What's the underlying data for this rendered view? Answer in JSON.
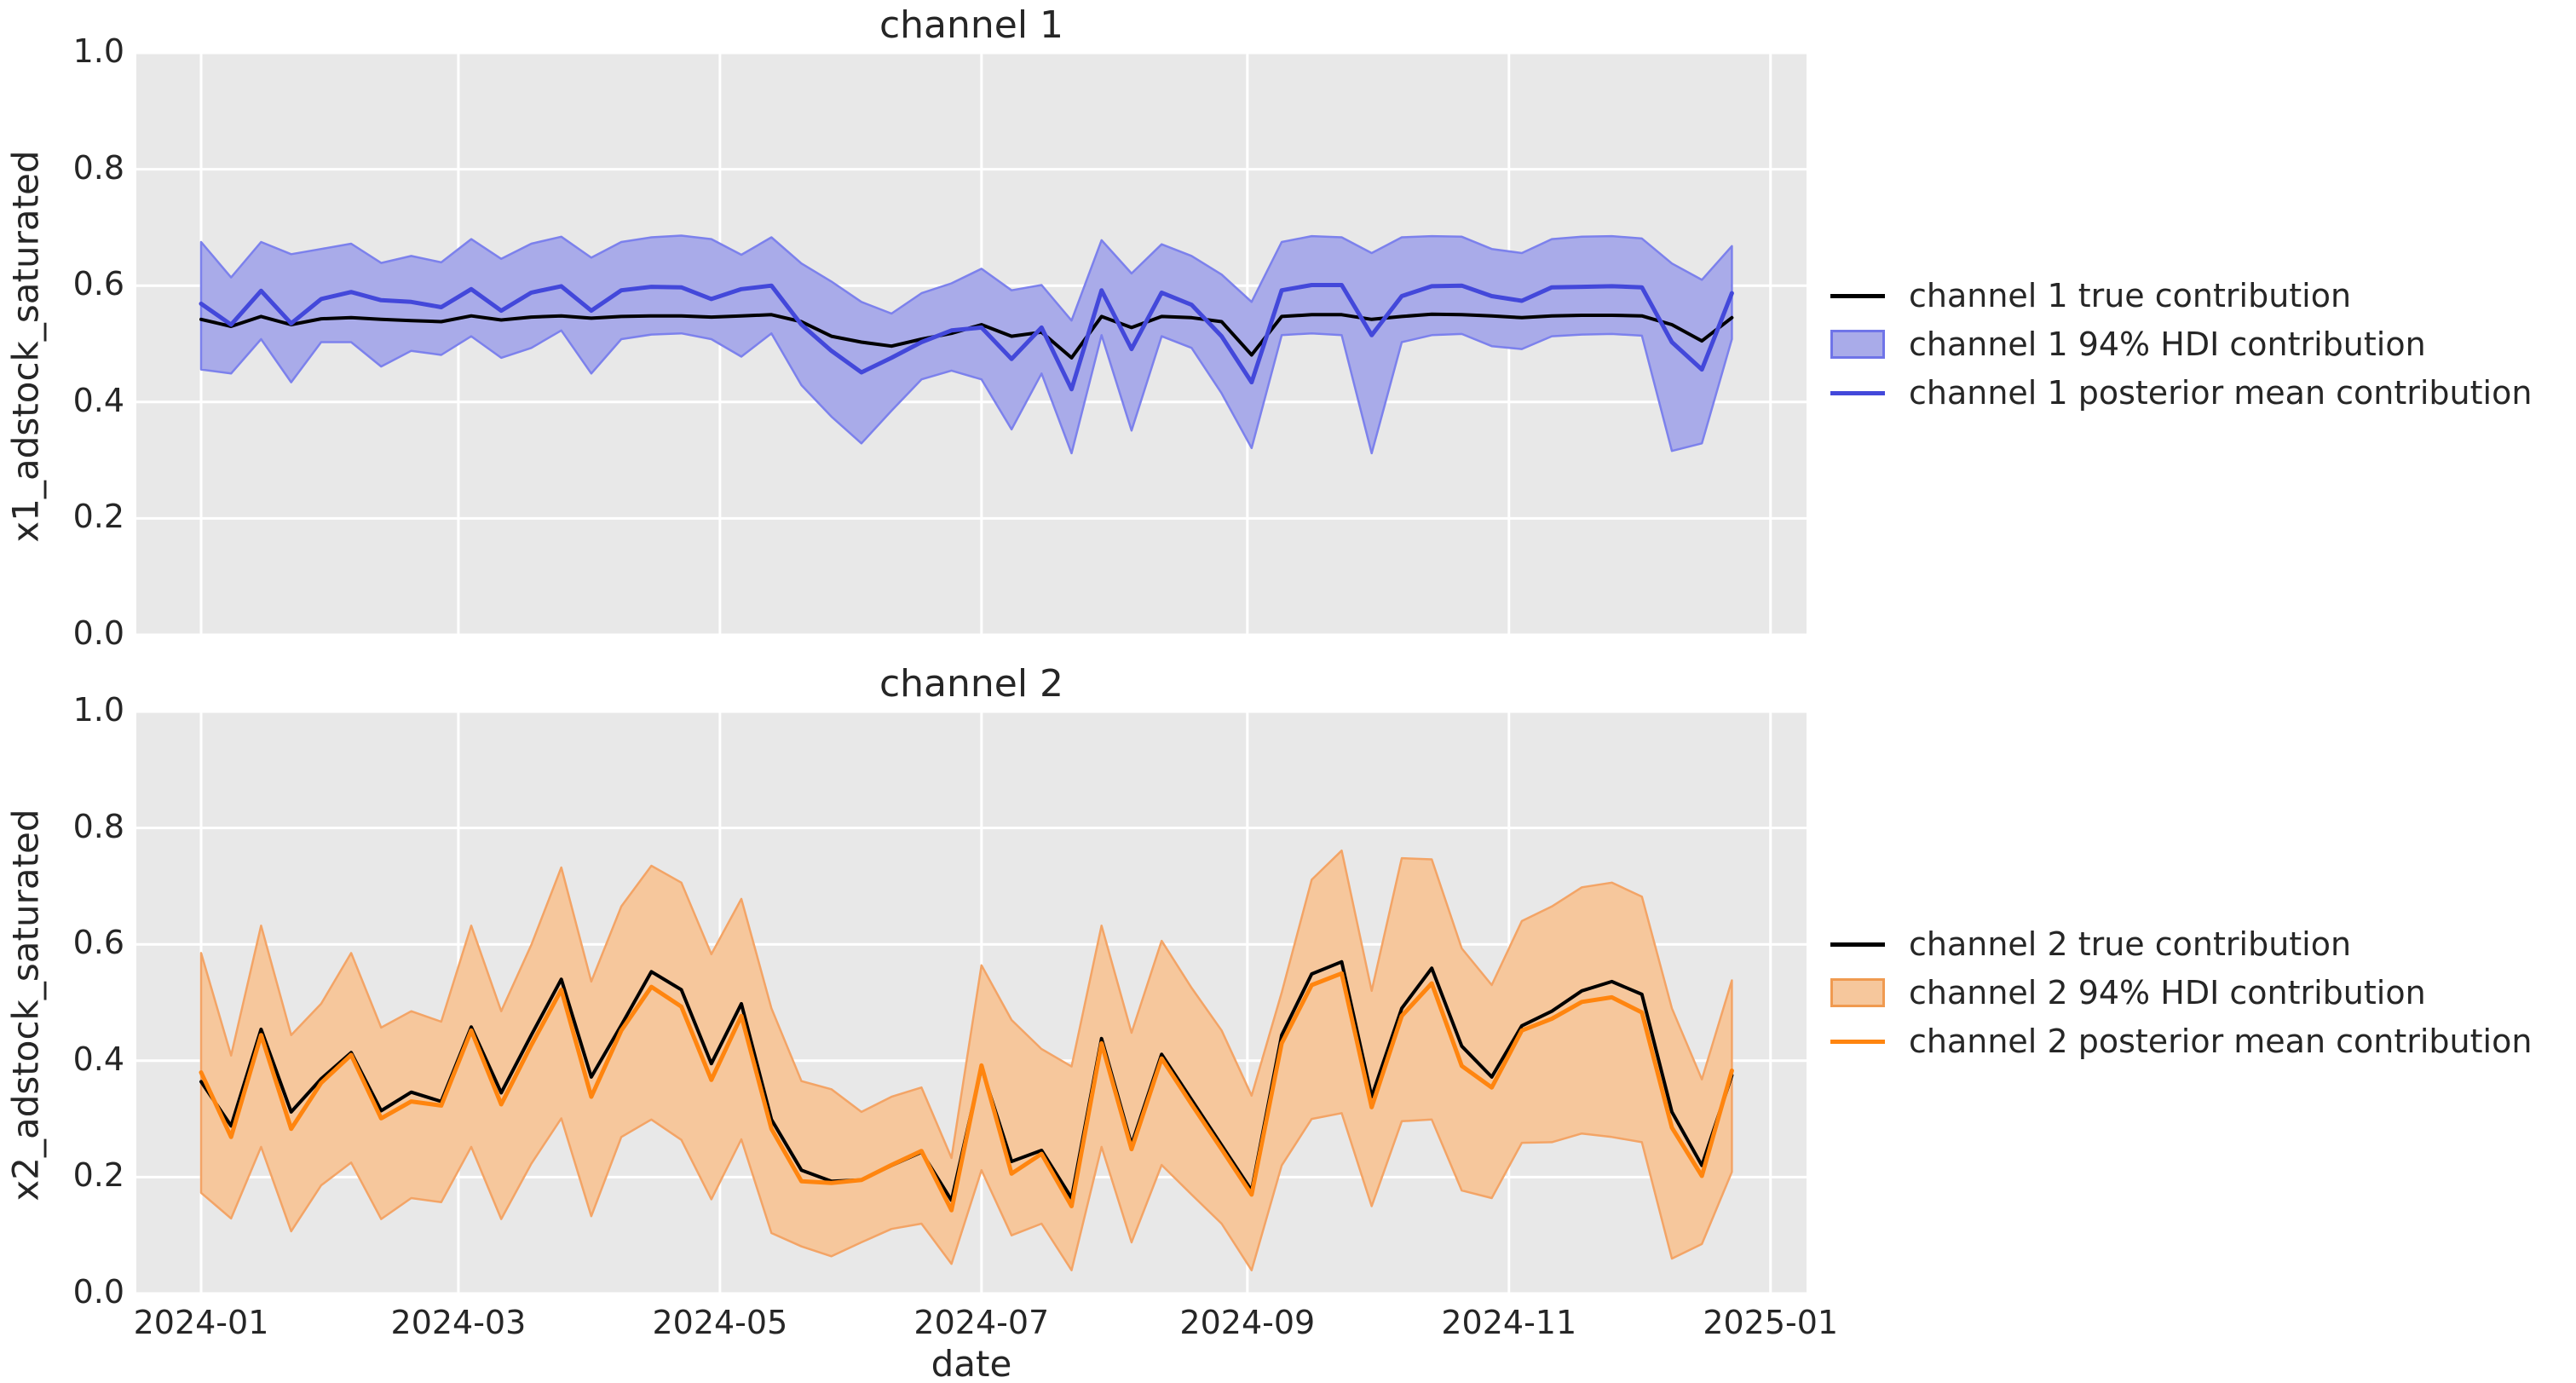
{
  "figure": {
    "background": "#ffffff",
    "axes_background": "#e8e8e8",
    "grid_color": "#ffffff",
    "text_color": "#262626"
  },
  "xlabel": "date",
  "chart_data": [
    {
      "type": "line",
      "title": "channel 1",
      "ylabel": "x1_adstock_saturated",
      "ylim": [
        0.0,
        1.0
      ],
      "xlim_days": [
        -15.1,
        374.4
      ],
      "grid": "on",
      "legend_position": "right-outside",
      "yticks": [
        {
          "label": "0.0",
          "v": 0.0
        },
        {
          "label": "0.2",
          "v": 0.2
        },
        {
          "label": "0.4",
          "v": 0.4
        },
        {
          "label": "0.6",
          "v": 0.6
        },
        {
          "label": "0.8",
          "v": 0.8
        },
        {
          "label": "1.0",
          "v": 1.0
        }
      ],
      "xticks": [
        {
          "label": "2024-01",
          "day": 0
        },
        {
          "label": "2024-03",
          "day": 60
        },
        {
          "label": "2024-05",
          "day": 121
        },
        {
          "label": "2024-07",
          "day": 182
        },
        {
          "label": "2024-09",
          "day": 244
        },
        {
          "label": "2024-11",
          "day": 305
        },
        {
          "label": "2025-01",
          "day": 366
        }
      ],
      "show_xtick_labels": false,
      "x_start_date": "2024-01-01",
      "x_step_days": 7,
      "colors": {
        "band_fill": "#a9abe9",
        "band_edge": "#7c81ec",
        "true_line": "#000000",
        "mean_line": "#4348da"
      },
      "hdi_band": {
        "name": "channel 1 94% HDI contribution",
        "low": [
          0.456,
          0.449,
          0.508,
          0.434,
          0.503,
          0.503,
          0.461,
          0.488,
          0.481,
          0.513,
          0.476,
          0.493,
          0.523,
          0.449,
          0.508,
          0.516,
          0.518,
          0.508,
          0.478,
          0.518,
          0.429,
          0.375,
          0.329,
          0.385,
          0.439,
          0.454,
          0.439,
          0.353,
          0.449,
          0.312,
          0.515,
          0.351,
          0.513,
          0.493,
          0.415,
          0.321,
          0.515,
          0.518,
          0.515,
          0.312,
          0.503,
          0.515,
          0.517,
          0.496,
          0.491,
          0.513,
          0.516,
          0.517,
          0.514,
          0.316,
          0.329,
          0.508
        ],
        "high": [
          0.675,
          0.614,
          0.675,
          0.654,
          0.663,
          0.672,
          0.639,
          0.651,
          0.64,
          0.68,
          0.646,
          0.672,
          0.684,
          0.648,
          0.675,
          0.683,
          0.686,
          0.68,
          0.653,
          0.683,
          0.638,
          0.607,
          0.572,
          0.552,
          0.587,
          0.604,
          0.629,
          0.592,
          0.601,
          0.54,
          0.678,
          0.621,
          0.671,
          0.651,
          0.619,
          0.572,
          0.675,
          0.685,
          0.683,
          0.656,
          0.683,
          0.685,
          0.684,
          0.663,
          0.656,
          0.68,
          0.684,
          0.685,
          0.681,
          0.638,
          0.61,
          0.668
        ]
      },
      "series": [
        {
          "name": "channel 1 true contribution",
          "color": "#000000",
          "width": 4,
          "values": [
            0.542,
            0.53,
            0.547,
            0.533,
            0.543,
            0.545,
            0.542,
            0.54,
            0.538,
            0.548,
            0.541,
            0.546,
            0.548,
            0.544,
            0.547,
            0.548,
            0.548,
            0.546,
            0.548,
            0.55,
            0.538,
            0.513,
            0.503,
            0.496,
            0.508,
            0.518,
            0.533,
            0.513,
            0.52,
            0.476,
            0.547,
            0.528,
            0.547,
            0.545,
            0.538,
            0.481,
            0.547,
            0.55,
            0.55,
            0.542,
            0.547,
            0.551,
            0.55,
            0.548,
            0.545,
            0.548,
            0.549,
            0.549,
            0.548,
            0.533,
            0.505,
            0.545
          ]
        },
        {
          "name": "channel 1 posterior mean contribution",
          "color": "#4348da",
          "width": 5,
          "values": [
            0.569,
            0.533,
            0.591,
            0.535,
            0.577,
            0.589,
            0.575,
            0.572,
            0.563,
            0.594,
            0.557,
            0.588,
            0.599,
            0.557,
            0.592,
            0.598,
            0.597,
            0.577,
            0.594,
            0.6,
            0.533,
            0.488,
            0.451,
            0.476,
            0.503,
            0.523,
            0.528,
            0.474,
            0.528,
            0.422,
            0.592,
            0.491,
            0.588,
            0.567,
            0.513,
            0.434,
            0.592,
            0.601,
            0.601,
            0.515,
            0.582,
            0.599,
            0.6,
            0.582,
            0.574,
            0.597,
            0.598,
            0.599,
            0.597,
            0.503,
            0.456,
            0.587
          ]
        }
      ],
      "legend": [
        {
          "label": "channel 1 true contribution",
          "swatch": "line",
          "color": "#000000"
        },
        {
          "label": "channel 1 94% HDI contribution",
          "swatch": "patch",
          "fill": "#a9abe9",
          "edge": "#6f74e8"
        },
        {
          "label": "channel 1 posterior mean contribution",
          "swatch": "line",
          "color": "#4348da"
        }
      ]
    },
    {
      "type": "line",
      "title": "channel 2",
      "ylabel": "x2_adstock_saturated",
      "xlabel": "date",
      "ylim": [
        0.0,
        1.0
      ],
      "xlim_days": [
        -15.1,
        374.4
      ],
      "grid": "on",
      "legend_position": "right-outside",
      "yticks": [
        {
          "label": "0.0",
          "v": 0.0
        },
        {
          "label": "0.2",
          "v": 0.2
        },
        {
          "label": "0.4",
          "v": 0.4
        },
        {
          "label": "0.6",
          "v": 0.6
        },
        {
          "label": "0.8",
          "v": 0.8
        },
        {
          "label": "1.0",
          "v": 1.0
        }
      ],
      "xticks": [
        {
          "label": "2024-01",
          "day": 0
        },
        {
          "label": "2024-03",
          "day": 60
        },
        {
          "label": "2024-05",
          "day": 121
        },
        {
          "label": "2024-07",
          "day": 182
        },
        {
          "label": "2024-09",
          "day": 244
        },
        {
          "label": "2024-11",
          "day": 305
        },
        {
          "label": "2025-01",
          "day": 366
        }
      ],
      "show_xtick_labels": true,
      "x_start_date": "2024-01-01",
      "x_step_days": 7,
      "colors": {
        "band_fill": "#f6c79c",
        "band_edge": "#f3a466",
        "true_line": "#000000",
        "mean_line": "#ff850f"
      },
      "hdi_band": {
        "name": "channel 2 94% HDI contribution",
        "low": [
          0.173,
          0.129,
          0.252,
          0.107,
          0.186,
          0.225,
          0.128,
          0.164,
          0.157,
          0.252,
          0.128,
          0.223,
          0.301,
          0.133,
          0.269,
          0.299,
          0.264,
          0.162,
          0.265,
          0.104,
          0.081,
          0.064,
          0.088,
          0.111,
          0.12,
          0.051,
          0.212,
          0.1,
          0.12,
          0.04,
          0.252,
          0.088,
          0.221,
          0.17,
          0.12,
          0.04,
          0.22,
          0.3,
          0.31,
          0.15,
          0.296,
          0.299,
          0.177,
          0.164,
          0.259,
          0.26,
          0.275,
          0.269,
          0.26,
          0.06,
          0.085,
          0.209
        ],
        "high": [
          0.585,
          0.409,
          0.632,
          0.444,
          0.498,
          0.585,
          0.457,
          0.485,
          0.467,
          0.632,
          0.485,
          0.599,
          0.732,
          0.536,
          0.665,
          0.735,
          0.706,
          0.583,
          0.678,
          0.49,
          0.365,
          0.351,
          0.312,
          0.338,
          0.354,
          0.233,
          0.564,
          0.47,
          0.42,
          0.39,
          0.632,
          0.448,
          0.606,
          0.525,
          0.452,
          0.34,
          0.517,
          0.711,
          0.761,
          0.52,
          0.748,
          0.746,
          0.593,
          0.53,
          0.64,
          0.665,
          0.698,
          0.706,
          0.682,
          0.49,
          0.368,
          0.538
        ]
      },
      "series": [
        {
          "name": "channel 2 true contribution",
          "color": "#000000",
          "width": 4,
          "values": [
            0.364,
            0.288,
            0.454,
            0.312,
            0.369,
            0.414,
            0.314,
            0.346,
            0.33,
            0.458,
            0.345,
            0.444,
            0.54,
            0.372,
            0.461,
            0.553,
            0.522,
            0.395,
            0.498,
            0.299,
            0.212,
            0.193,
            0.195,
            0.22,
            0.243,
            0.16,
            0.388,
            0.227,
            0.246,
            0.164,
            0.438,
            0.256,
            0.411,
            0.333,
            0.255,
            0.177,
            0.444,
            0.549,
            0.57,
            0.338,
            0.49,
            0.559,
            0.425,
            0.372,
            0.46,
            0.485,
            0.52,
            0.536,
            0.514,
            0.312,
            0.22,
            0.375
          ]
        },
        {
          "name": "channel 2 posterior mean contribution",
          "color": "#ff850f",
          "width": 5,
          "values": [
            0.38,
            0.269,
            0.444,
            0.283,
            0.362,
            0.41,
            0.301,
            0.33,
            0.323,
            0.452,
            0.325,
            0.427,
            0.522,
            0.338,
            0.452,
            0.527,
            0.493,
            0.367,
            0.477,
            0.283,
            0.193,
            0.19,
            0.195,
            0.221,
            0.245,
            0.143,
            0.392,
            0.206,
            0.24,
            0.15,
            0.43,
            0.248,
            0.404,
            0.325,
            0.248,
            0.17,
            0.43,
            0.53,
            0.55,
            0.32,
            0.477,
            0.533,
            0.391,
            0.354,
            0.452,
            0.472,
            0.501,
            0.509,
            0.483,
            0.285,
            0.202,
            0.383
          ]
        }
      ],
      "legend": [
        {
          "label": "channel 2 true contribution",
          "swatch": "line",
          "color": "#000000"
        },
        {
          "label": "channel 2 94% HDI contribution",
          "swatch": "patch",
          "fill": "#f6c79c",
          "edge": "#f09a50"
        },
        {
          "label": "channel 2 posterior mean contribution",
          "swatch": "line",
          "color": "#ff850f"
        }
      ]
    }
  ]
}
